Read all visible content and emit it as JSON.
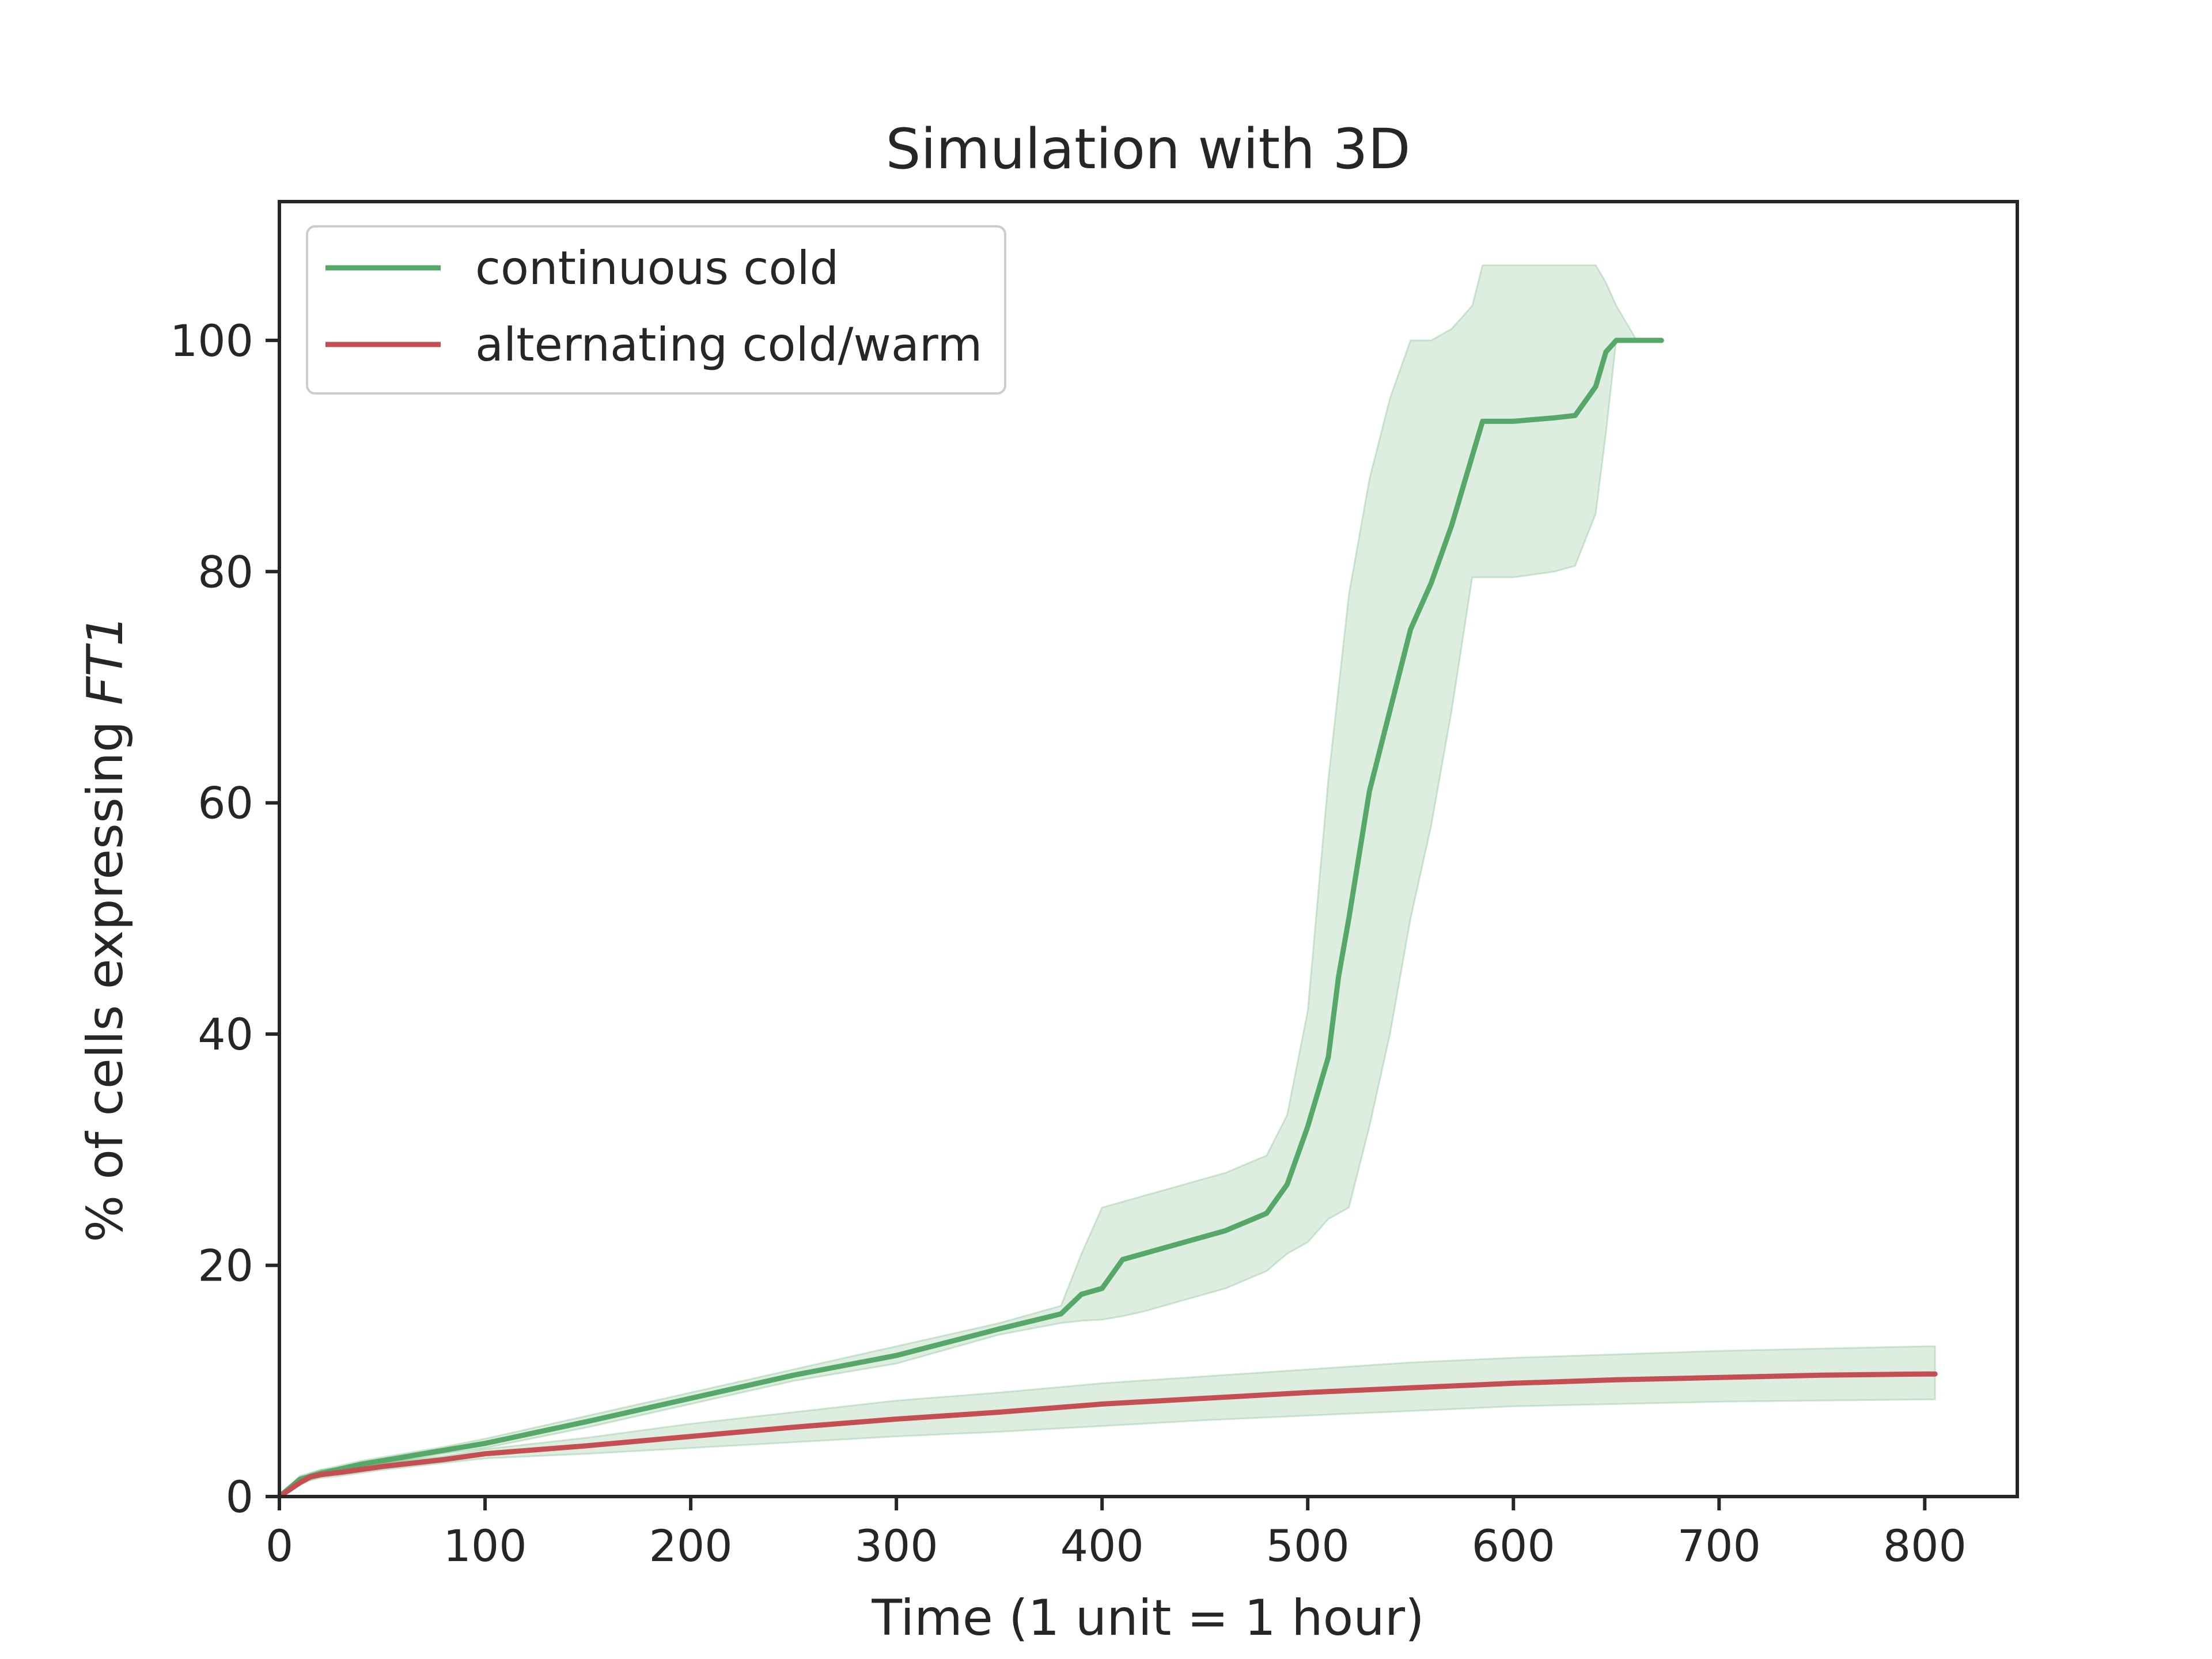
{
  "chart_data": {
    "type": "line",
    "title": "Simulation with 3D",
    "xlabel": "Time (1 unit = 1 hour)",
    "ylabel_prefix": "% of cells expressing ",
    "ylabel_gene": "FT1",
    "xlim": [
      0,
      845
    ],
    "ylim": [
      0,
      112
    ],
    "xticks": [
      0,
      100,
      200,
      300,
      400,
      500,
      600,
      700,
      800
    ],
    "yticks": [
      0,
      20,
      40,
      60,
      80,
      100
    ],
    "grid": false,
    "legend_position": "top-left",
    "colors": {
      "green": "#55a868",
      "red": "#c44e52",
      "band": "#55a868"
    },
    "series": [
      {
        "name": "continuous cold",
        "color": "#55a868",
        "x": [
          0,
          10,
          20,
          40,
          60,
          80,
          100,
          150,
          200,
          250,
          300,
          350,
          380,
          390,
          400,
          410,
          420,
          440,
          460,
          480,
          490,
          500,
          505,
          510,
          515,
          520,
          530,
          540,
          550,
          560,
          570,
          580,
          585,
          600,
          620,
          630,
          640,
          645,
          650,
          660,
          672
        ],
        "y": [
          0,
          1.5,
          2,
          2.8,
          3.4,
          4,
          4.6,
          6.5,
          8.5,
          10.5,
          12.2,
          14.5,
          15.8,
          17.5,
          18,
          20.5,
          21,
          22,
          23,
          24.5,
          27,
          32,
          35,
          38,
          45,
          50,
          61,
          68,
          75,
          79,
          84,
          90,
          93,
          93,
          93.3,
          93.5,
          96,
          99,
          100,
          100,
          100
        ],
        "upper": [
          0,
          1.8,
          2.3,
          3.1,
          3.7,
          4.3,
          5,
          7,
          9,
          11,
          13,
          15,
          16.5,
          21,
          25,
          25.5,
          26,
          27,
          28,
          29.5,
          33,
          42,
          52,
          62,
          70,
          78,
          88,
          95,
          100,
          100,
          101,
          103,
          106.5,
          106.5,
          106.5,
          106.5,
          106.5,
          105,
          103,
          100,
          100
        ],
        "lower": [
          0,
          1.2,
          1.7,
          2.5,
          3.1,
          3.7,
          4.2,
          6,
          8,
          10,
          11.5,
          14,
          15,
          15.2,
          15.3,
          15.6,
          16,
          17,
          18,
          19.5,
          21,
          22,
          23,
          24,
          24.5,
          25,
          32,
          40,
          50,
          58,
          68,
          79.5,
          79.5,
          79.5,
          80,
          80.5,
          85,
          92,
          100,
          100,
          100
        ]
      },
      {
        "name": "alternating cold/warm",
        "color": "#c44e52",
        "x": [
          0,
          10,
          15,
          20,
          30,
          50,
          80,
          100,
          150,
          200,
          250,
          300,
          350,
          400,
          450,
          500,
          550,
          600,
          650,
          700,
          750,
          800,
          805
        ],
        "y": [
          0,
          1.2,
          1.7,
          1.9,
          2.1,
          2.6,
          3.2,
          3.7,
          4.4,
          5.2,
          6,
          6.7,
          7.3,
          8,
          8.5,
          9,
          9.4,
          9.8,
          10.1,
          10.3,
          10.5,
          10.6,
          10.6
        ],
        "upper": [
          0,
          1.4,
          2,
          2.3,
          2.5,
          2.9,
          3.5,
          4.1,
          5.1,
          6.3,
          7.3,
          8.3,
          9,
          9.8,
          10.4,
          11,
          11.6,
          12,
          12.3,
          12.6,
          12.8,
          13,
          13
        ],
        "lower": [
          0,
          1,
          1.4,
          1.6,
          1.8,
          2.3,
          2.9,
          3.3,
          3.7,
          4.2,
          4.7,
          5.2,
          5.6,
          6.1,
          6.6,
          7,
          7.4,
          7.8,
          8,
          8.2,
          8.3,
          8.4,
          8.4
        ]
      }
    ]
  }
}
